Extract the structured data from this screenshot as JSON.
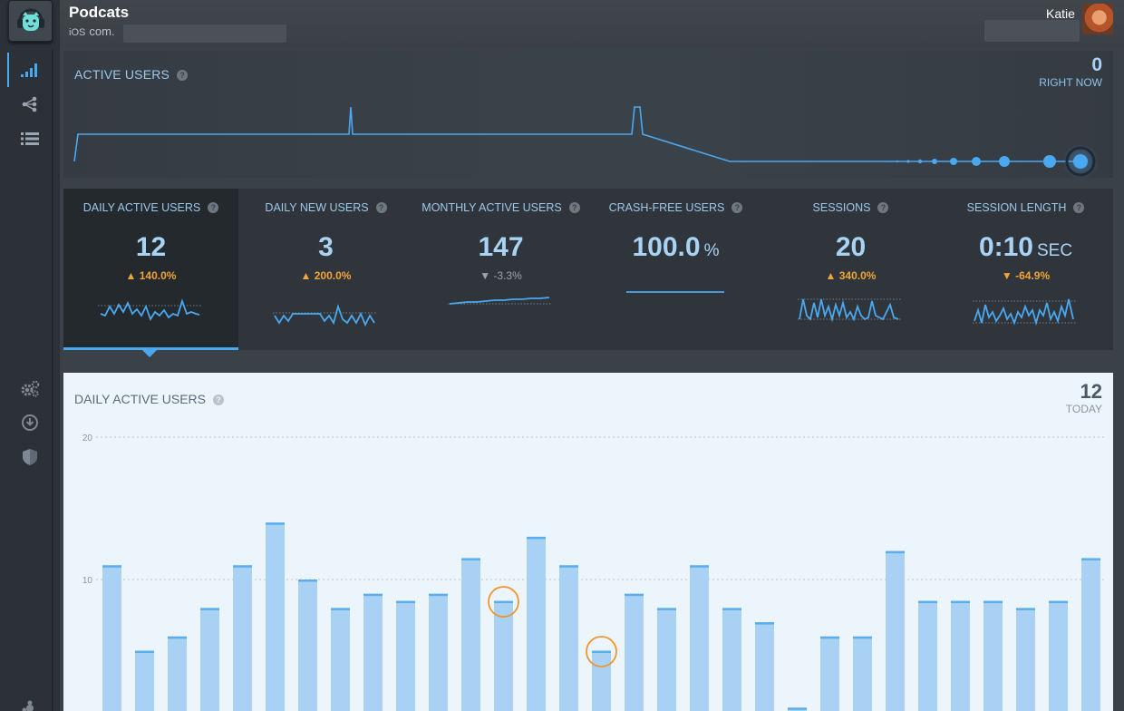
{
  "header": {
    "app_name": "Podcats",
    "platform": "iOS",
    "bundle_prefix": "com.",
    "user_name": "Katie"
  },
  "sidebar": {
    "top_items": [
      {
        "name": "analytics-icon",
        "active": true
      },
      {
        "name": "share-icon",
        "active": false
      },
      {
        "name": "list-icon",
        "active": false
      }
    ],
    "bottom_items": [
      {
        "name": "settings-gears-icon"
      },
      {
        "name": "download-icon"
      },
      {
        "name": "shield-icon"
      }
    ]
  },
  "active_users": {
    "title": "ACTIVE USERS",
    "right_now_value": "0",
    "right_now_label": "RIGHT NOW"
  },
  "metrics": [
    {
      "label": "DAILY ACTIVE USERS",
      "value": "12",
      "unit": "",
      "change": "140.0%",
      "direction": "up",
      "selected": true
    },
    {
      "label": "DAILY NEW USERS",
      "value": "3",
      "unit": "",
      "change": "200.0%",
      "direction": "up",
      "selected": false
    },
    {
      "label": "MONTHLY ACTIVE USERS",
      "value": "147",
      "unit": "",
      "change": "-3.3%",
      "direction": "down-gray",
      "selected": false
    },
    {
      "label": "CRASH-FREE USERS",
      "value": "100.0",
      "unit": "%",
      "change": "",
      "direction": "none",
      "selected": false
    },
    {
      "label": "SESSIONS",
      "value": "20",
      "unit": "",
      "change": "340.0%",
      "direction": "up",
      "selected": false
    },
    {
      "label": "SESSION LENGTH",
      "value": "0:10",
      "unit": "SEC",
      "change": "-64.9%",
      "direction": "down-orange",
      "selected": false
    }
  ],
  "chart_panel": {
    "title": "DAILY ACTIVE USERS",
    "today_value": "12",
    "today_label": "TODAY"
  },
  "chart_data": {
    "type": "bar",
    "y_ticks": [
      "20",
      "10"
    ],
    "ylim": [
      0,
      20
    ],
    "values": [
      11,
      5,
      6,
      8,
      11,
      14,
      10,
      8,
      9,
      8.5,
      9,
      11.5,
      8.5,
      13,
      11,
      5,
      9,
      8,
      11,
      8,
      7,
      1,
      6,
      6,
      12,
      8.5,
      8.5,
      8.5,
      8,
      8.5,
      11.5
    ],
    "highlighted_indices": [
      12,
      15
    ],
    "colors": {
      "bar": "#a8d1f3",
      "bar_top": "#5aaeee",
      "highlight": "#f0952e",
      "grid": "#a6b2bd"
    }
  }
}
